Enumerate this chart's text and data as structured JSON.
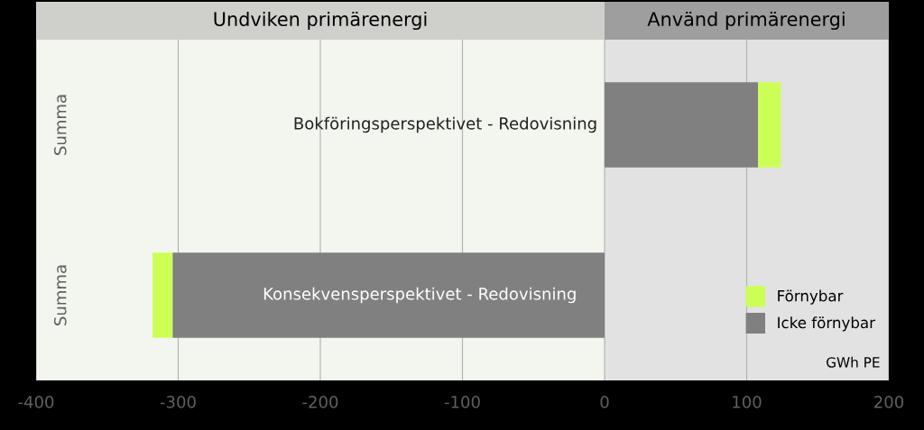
{
  "chart_data": {
    "type": "bar",
    "orientation": "horizontal",
    "stacked": true,
    "categories": [
      "Bokföringsperspektivet - Redovisning",
      "Konsekvensperspektivet - Redovisning"
    ],
    "series": [
      {
        "name": "Icke förnybar",
        "color": "#808080",
        "values": [
          108,
          -304
        ]
      },
      {
        "name": "Förnybar",
        "color": "#ccff55",
        "values": [
          16,
          -14
        ]
      }
    ],
    "xlim": [
      -400,
      200
    ],
    "xticks": [
      -400,
      -300,
      -200,
      -100,
      0,
      100,
      200
    ],
    "bands": [
      {
        "axis": "x",
        "from": -400,
        "to": 0,
        "label": "Undviken primärenergi",
        "color": "#f3f5ef"
      },
      {
        "axis": "x",
        "from": 0,
        "to": 200,
        "label": "Använd primärenergi",
        "color": "#e2e2e2"
      }
    ],
    "annotations": [
      "Summa",
      "Summa",
      "GWh PE"
    ],
    "grid": "x",
    "legend": "bottom right"
  }
}
